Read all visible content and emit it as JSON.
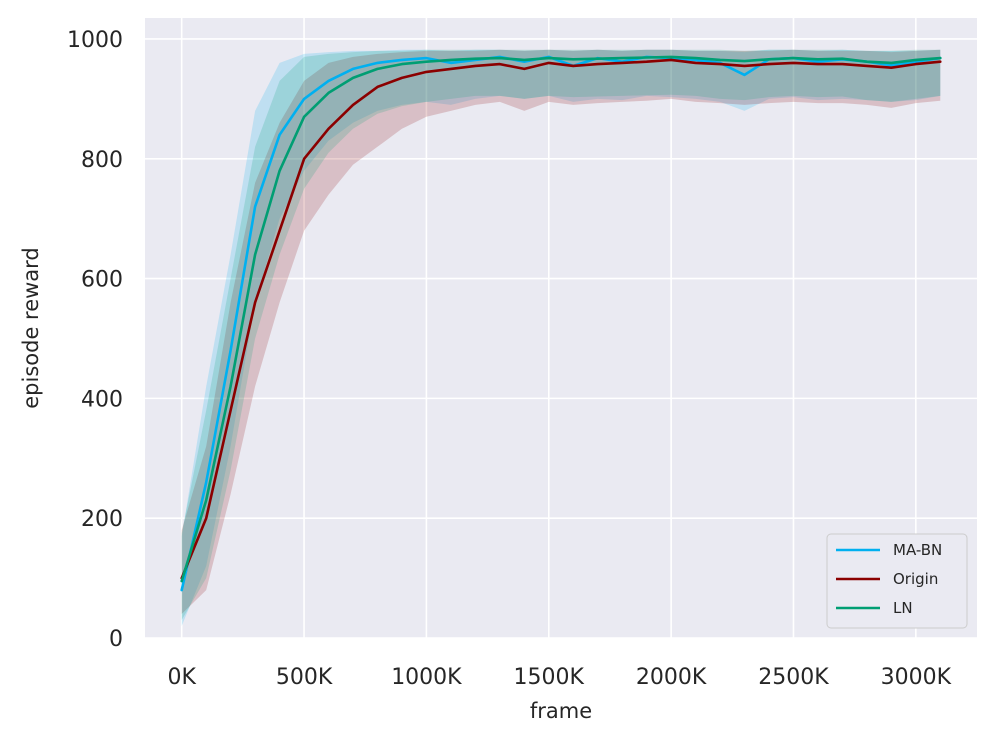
{
  "chart_data": {
    "type": "line",
    "title": "",
    "xlabel": "frame",
    "ylabel": "episode reward",
    "xlim": [
      -150000,
      3250000
    ],
    "ylim": [
      0,
      1035
    ],
    "x_ticks": [
      {
        "value": 0,
        "label": "0K"
      },
      {
        "value": 500000,
        "label": "500K"
      },
      {
        "value": 1000000,
        "label": "1000K"
      },
      {
        "value": 1500000,
        "label": "1500K"
      },
      {
        "value": 2000000,
        "label": "2000K"
      },
      {
        "value": 2500000,
        "label": "2500K"
      },
      {
        "value": 3000000,
        "label": "3000K"
      }
    ],
    "y_ticks": [
      {
        "value": 0,
        "label": "0"
      },
      {
        "value": 200,
        "label": "200"
      },
      {
        "value": 400,
        "label": "400"
      },
      {
        "value": 600,
        "label": "600"
      },
      {
        "value": 800,
        "label": "800"
      },
      {
        "value": 1000,
        "label": "1000"
      }
    ],
    "grid": true,
    "legend_position": "bottom-right",
    "x": [
      0,
      100000,
      200000,
      300000,
      400000,
      500000,
      600000,
      700000,
      800000,
      900000,
      1000000,
      1100000,
      1200000,
      1300000,
      1400000,
      1500000,
      1600000,
      1700000,
      1800000,
      1900000,
      2000000,
      2100000,
      2200000,
      2300000,
      2400000,
      2500000,
      2600000,
      2700000,
      2800000,
      2900000,
      3000000,
      3100000
    ],
    "series": [
      {
        "name": "MA-BN",
        "color": "#00b0f0",
        "values": [
          80,
          260,
          480,
          720,
          840,
          900,
          930,
          950,
          960,
          965,
          968,
          960,
          965,
          970,
          962,
          970,
          955,
          968,
          962,
          970,
          968,
          965,
          960,
          940,
          966,
          968,
          962,
          966,
          962,
          956,
          962,
          968
        ],
        "band_low": [
          20,
          120,
          320,
          560,
          700,
          780,
          830,
          860,
          880,
          890,
          895,
          890,
          900,
          905,
          900,
          905,
          895,
          900,
          898,
          905,
          903,
          900,
          895,
          880,
          900,
          903,
          898,
          900,
          898,
          895,
          898,
          905
        ],
        "band_high": [
          170,
          420,
          640,
          880,
          960,
          975,
          978,
          980,
          980,
          982,
          982,
          980,
          982,
          982,
          980,
          982,
          980,
          982,
          980,
          982,
          982,
          980,
          980,
          978,
          982,
          982,
          980,
          982,
          980,
          980,
          980,
          982
        ]
      },
      {
        "name": "Origin",
        "color": "#8b0000",
        "values": [
          100,
          200,
          380,
          560,
          680,
          800,
          850,
          890,
          920,
          935,
          945,
          950,
          955,
          958,
          950,
          960,
          955,
          958,
          960,
          962,
          965,
          960,
          958,
          955,
          958,
          960,
          958,
          958,
          955,
          952,
          958,
          962
        ],
        "band_low": [
          40,
          80,
          240,
          420,
          560,
          680,
          740,
          790,
          820,
          850,
          870,
          880,
          890,
          895,
          880,
          895,
          890,
          893,
          895,
          897,
          900,
          895,
          893,
          890,
          893,
          895,
          893,
          893,
          890,
          885,
          893,
          897
        ],
        "band_high": [
          180,
          320,
          560,
          760,
          860,
          930,
          960,
          970,
          975,
          978,
          980,
          980,
          980,
          982,
          980,
          982,
          980,
          982,
          980,
          982,
          982,
          980,
          980,
          980,
          980,
          982,
          980,
          980,
          980,
          978,
          980,
          982
        ]
      },
      {
        "name": "LN",
        "color": "#009e73",
        "values": [
          95,
          230,
          420,
          640,
          780,
          870,
          910,
          935,
          950,
          958,
          962,
          965,
          967,
          968,
          965,
          968,
          966,
          967,
          968,
          969,
          970,
          968,
          965,
          963,
          966,
          968,
          966,
          967,
          962,
          960,
          965,
          968
        ],
        "band_low": [
          30,
          100,
          280,
          500,
          640,
          750,
          810,
          850,
          875,
          888,
          895,
          900,
          905,
          905,
          900,
          905,
          903,
          904,
          905,
          906,
          907,
          905,
          900,
          898,
          903,
          905,
          903,
          904,
          898,
          895,
          900,
          905
        ],
        "band_high": [
          175,
          380,
          600,
          820,
          930,
          970,
          975,
          978,
          980,
          980,
          982,
          982,
          982,
          982,
          982,
          982,
          982,
          982,
          982,
          982,
          982,
          982,
          982,
          980,
          982,
          982,
          982,
          982,
          980,
          980,
          982,
          982
        ]
      }
    ]
  }
}
